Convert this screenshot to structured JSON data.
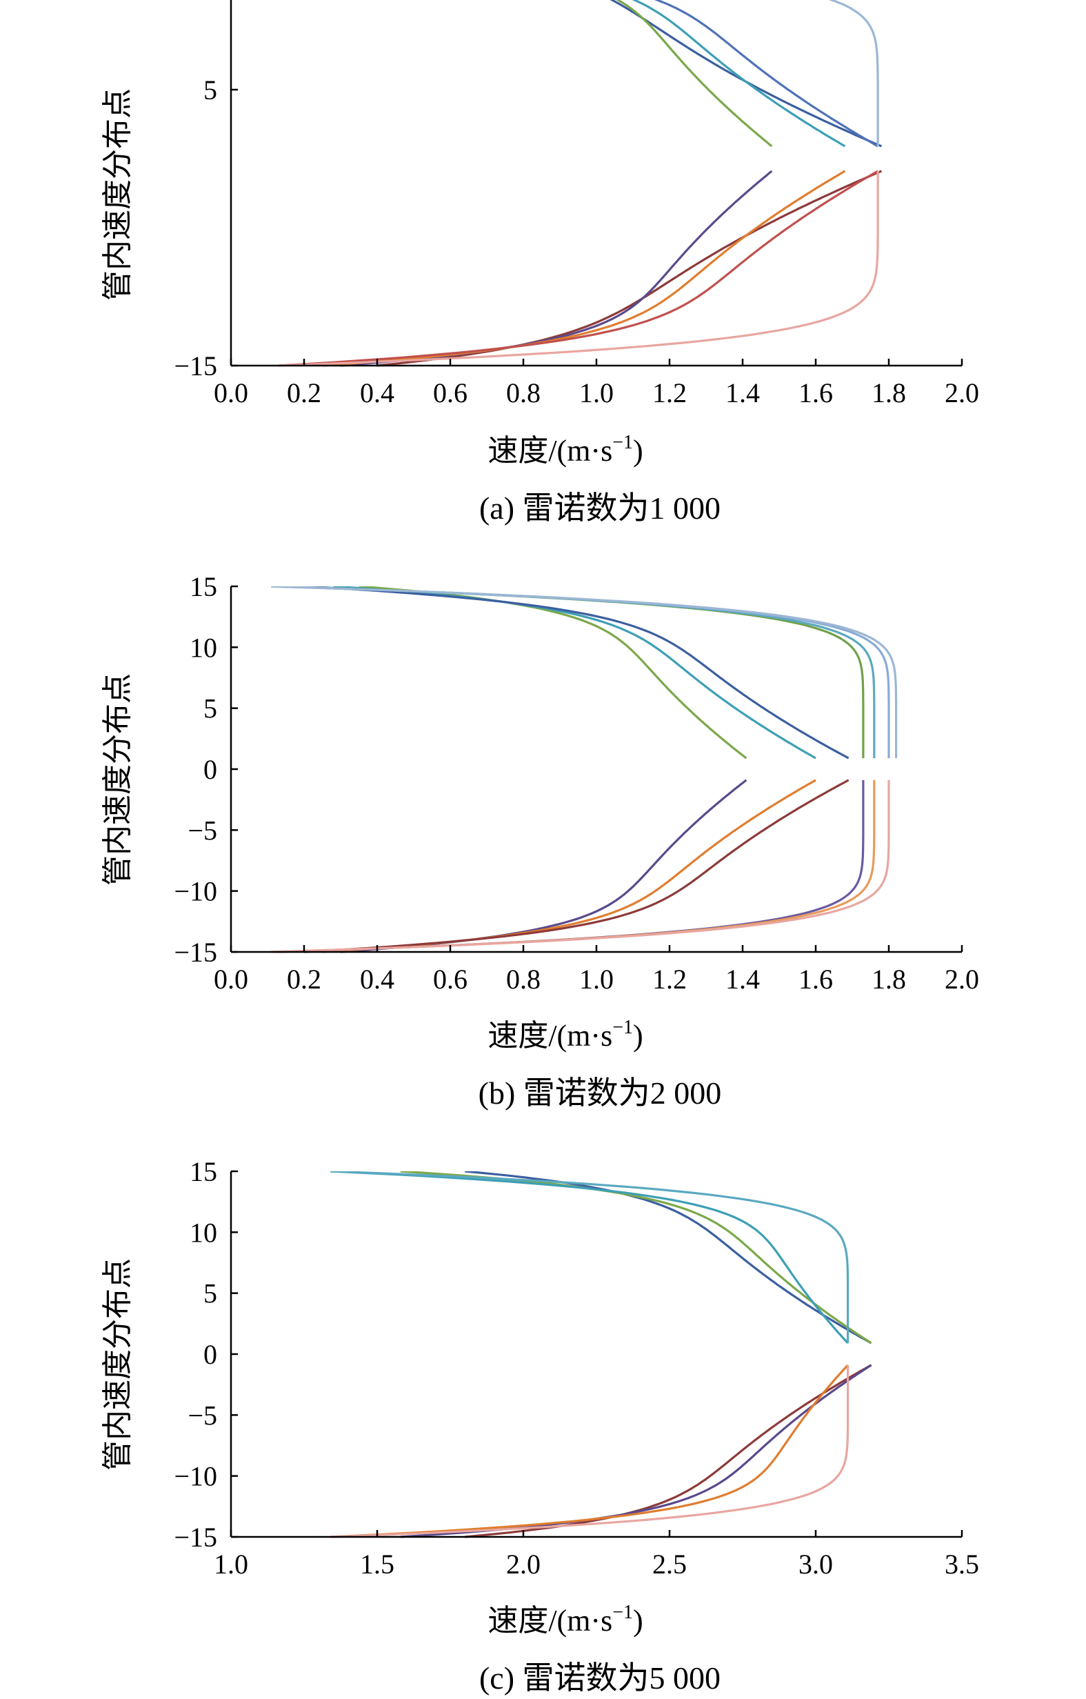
{
  "panels": [
    {
      "caption": "(a) 雷诺数为1 000",
      "chart_data": {
        "type": "line",
        "xlabel": "速度/(m·s",
        "xlabel_sup": "−1",
        "xlabel_close": ")",
        "ylabel": "管内速度分布点",
        "xlim": [
          0.0,
          2.0
        ],
        "ylim": [
          -15,
          15
        ],
        "x_ticks": [
          "0.0",
          "0.2",
          "0.4",
          "0.6",
          "0.8",
          "1.0",
          "1.2",
          "1.4",
          "1.6",
          "1.8",
          "2.0"
        ],
        "y_ticks": [
          {
            "value": 5,
            "label": "5"
          },
          {
            "value": -15,
            "label": "−15"
          }
        ],
        "series": [
          {
            "color": "#3b5fa0",
            "plateau": 1.0,
            "peak": 1.78,
            "wall_top": 0.55,
            "wall_bottom": 0.55
          },
          {
            "color": "#8d3a3a",
            "plateau": 1.0,
            "peak": 1.78,
            "wall_top": 0.4,
            "wall_bottom": 0.4
          },
          {
            "color": "#7ba84a",
            "plateau": 1.07,
            "peak": 1.48,
            "wall_top": 0.4,
            "wall_bottom": 0.4
          },
          {
            "color": "#5a4a8c",
            "plateau": 1.07,
            "peak": 1.48,
            "wall_top": 0.3,
            "wall_bottom": 0.3
          },
          {
            "color": "#3d9fb5",
            "plateau": 1.11,
            "peak": 1.68,
            "wall_top": 0.3,
            "wall_bottom": 0.3
          },
          {
            "color": "#e07d2f",
            "plateau": 1.11,
            "peak": 1.68,
            "wall_top": 0.25,
            "wall_bottom": 0.25
          },
          {
            "color": "#4e72b8",
            "plateau": 1.19,
            "peak": 1.77,
            "wall_top": 0.13,
            "wall_bottom": 0.13
          },
          {
            "color": "#c0504d",
            "plateau": 1.19,
            "peak": 1.77,
            "wall_top": 0.13,
            "wall_bottom": 0.13
          },
          {
            "color": "#9bb7d4",
            "plateau": 1.77,
            "peak": 1.77,
            "wall_top": 0.13,
            "wall_bottom": 0.13
          },
          {
            "color": "#e8a6a0",
            "plateau": 1.77,
            "peak": 1.77,
            "wall_top": 0.13,
            "wall_bottom": 0.13
          }
        ]
      }
    },
    {
      "caption": "(b) 雷诺数为2 000",
      "chart_data": {
        "type": "line",
        "xlabel": "速度/(m·s",
        "xlabel_sup": "−1",
        "xlabel_close": ")",
        "ylabel": "管内速度分布点",
        "xlim": [
          0.0,
          2.0
        ],
        "ylim": [
          -15,
          15
        ],
        "x_ticks": [
          "0.0",
          "0.2",
          "0.4",
          "0.6",
          "0.8",
          "1.0",
          "1.2",
          "1.4",
          "1.6",
          "1.8",
          "2.0"
        ],
        "y_ticks": [
          {
            "value": 15,
            "label": "15"
          },
          {
            "value": 10,
            "label": "10"
          },
          {
            "value": 5,
            "label": "5"
          },
          {
            "value": 0,
            "label": "0"
          },
          {
            "value": -5,
            "label": "−5"
          },
          {
            "value": -10,
            "label": "−10"
          },
          {
            "value": -15,
            "label": "−15"
          }
        ],
        "series": [
          {
            "color": "#7ba84a",
            "plateau": 1.03,
            "peak": 1.41,
            "wall_top": 0.35,
            "wall_bottom": 0.35
          },
          {
            "color": "#5a4a8c",
            "plateau": 1.03,
            "peak": 1.41,
            "wall_top": 0.3,
            "wall_bottom": 0.3
          },
          {
            "color": "#3d9fb5",
            "plateau": 1.08,
            "peak": 1.6,
            "wall_top": 0.28,
            "wall_bottom": 0.28
          },
          {
            "color": "#e07d2f",
            "plateau": 1.08,
            "peak": 1.6,
            "wall_top": 0.25,
            "wall_bottom": 0.25
          },
          {
            "color": "#3b5fa0",
            "plateau": 1.14,
            "peak": 1.69,
            "wall_top": 0.2,
            "wall_bottom": 0.2
          },
          {
            "color": "#8d3a3a",
            "plateau": 1.14,
            "peak": 1.69,
            "wall_top": 0.2,
            "wall_bottom": 0.2
          },
          {
            "color": "#6fa14a",
            "plateau": 1.73,
            "peak": 1.73,
            "wall_top": 0.13,
            "wall_bottom": 0.13
          },
          {
            "color": "#6a5aa0",
            "plateau": 1.73,
            "peak": 1.73,
            "wall_top": 0.13,
            "wall_bottom": 0.13
          },
          {
            "color": "#5aa9c0",
            "plateau": 1.76,
            "peak": 1.76,
            "wall_top": 0.12,
            "wall_bottom": 0.12
          },
          {
            "color": "#e89a5c",
            "plateau": 1.76,
            "peak": 1.76,
            "wall_top": 0.12,
            "wall_bottom": 0.12
          },
          {
            "color": "#8aa9d6",
            "plateau": 1.8,
            "peak": 1.8,
            "wall_top": 0.11,
            "wall_bottom": 0.11
          },
          {
            "color": "#e8a6a0",
            "plateau": 1.8,
            "peak": 1.8,
            "wall_top": 0.11,
            "wall_bottom": 0.11
          },
          {
            "color": "#9bb7d4",
            "plateau": 1.82,
            "peak": 1.82,
            "wall_top": 0.11,
            "wall_bottom": 0.11
          }
        ]
      }
    },
    {
      "caption": "(c) 雷诺数为5 000",
      "chart_data": {
        "type": "line",
        "xlabel": "速度/(m·s",
        "xlabel_sup": "−1",
        "xlabel_close": ")",
        "ylabel": "管内速度分布点",
        "xlim": [
          1.0,
          3.5
        ],
        "ylim": [
          -15,
          15
        ],
        "x_ticks": [
          "1.0",
          "1.5",
          "2.0",
          "2.5",
          "3.0",
          "3.5"
        ],
        "y_ticks": [
          {
            "value": 15,
            "label": "15"
          },
          {
            "value": 10,
            "label": "10"
          },
          {
            "value": 5,
            "label": "5"
          },
          {
            "value": 0,
            "label": "0"
          },
          {
            "value": -5,
            "label": "−5"
          },
          {
            "value": -10,
            "label": "−10"
          },
          {
            "value": -15,
            "label": "−15"
          }
        ],
        "series": [
          {
            "color": "#3b5fa0",
            "plateau": 2.53,
            "peak": 3.19,
            "wall_top": 1.8,
            "wall_bottom": 1.8
          },
          {
            "color": "#8d3a3a",
            "plateau": 2.53,
            "peak": 3.19,
            "wall_top": 1.8,
            "wall_bottom": 1.8
          },
          {
            "color": "#7ba84a",
            "plateau": 2.62,
            "peak": 3.19,
            "wall_top": 1.58,
            "wall_bottom": 1.58
          },
          {
            "color": "#5a4a8c",
            "plateau": 2.62,
            "peak": 3.19,
            "wall_top": 1.58,
            "wall_bottom": 1.58
          },
          {
            "color": "#3d9fb5",
            "plateau": 2.77,
            "peak": 3.11,
            "wall_top": 1.34,
            "wall_bottom": 1.34
          },
          {
            "color": "#e07d2f",
            "plateau": 2.77,
            "peak": 3.11,
            "wall_top": 1.34,
            "wall_bottom": 1.34
          },
          {
            "color": "#5aa9c0",
            "plateau": 3.11,
            "peak": 3.11,
            "wall_top": 1.34,
            "wall_bottom": 1.34
          },
          {
            "color": "#e8a6a0",
            "plateau": 3.11,
            "peak": 3.11,
            "wall_top": 1.34,
            "wall_bottom": 1.34
          }
        ]
      }
    }
  ]
}
